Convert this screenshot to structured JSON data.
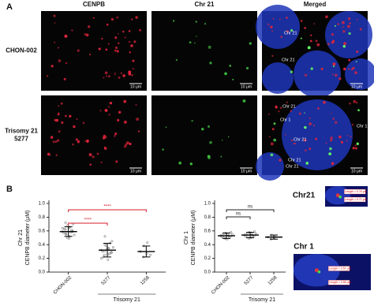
{
  "panel_a": {
    "label": "A",
    "columns": [
      "CENPB",
      "Chr 21",
      "Merged"
    ],
    "rows": [
      [
        "CHON-002"
      ],
      [
        "Trisomy 21",
        "5277"
      ]
    ],
    "scale_bar": "10 μm",
    "annotations": [
      [
        "Chr 21",
        "Chr 21"
      ],
      [
        "Chr 21",
        "Chr 1",
        "Chr 1",
        "Chr 21",
        "Chr 21",
        "Chr 21"
      ]
    ]
  },
  "panel_b": {
    "label": "B",
    "insets": [
      {
        "title": "Chr21",
        "lengths": [
          "Length = 0.76 μm",
          "Length = 0.71 μm"
        ]
      },
      {
        "title": "Chr 1",
        "lengths": [
          "Length = 0.57 μm",
          "Length = 0.55 μm"
        ]
      }
    ]
  },
  "chart_data": [
    {
      "type": "strip",
      "y_label": [
        "Chr 21",
        "CENPB diameter (μM)"
      ],
      "categories": [
        "CHON-002",
        "5277",
        "1258"
      ],
      "group_label": "Trisomy 21",
      "means": [
        0.59,
        0.32,
        0.3
      ],
      "sd": [
        0.07,
        0.1,
        0.08
      ],
      "points": [
        [
          0.59,
          0.62,
          0.55,
          0.66,
          0.52,
          0.6,
          0.7,
          0.57,
          0.63,
          0.5,
          0.68,
          0.58,
          0.61,
          0.54,
          0.64,
          0.72,
          0.56,
          0.49,
          0.65,
          0.59
        ],
        [
          0.32,
          0.25,
          0.4,
          0.18,
          0.35,
          0.28,
          0.45,
          0.3,
          0.22,
          0.38,
          0.33,
          0.27,
          0.42,
          0.36,
          0.2,
          0.31,
          0.52,
          0.26,
          0.34,
          0.29
        ],
        [
          0.3,
          0.22,
          0.38,
          0.27,
          0.43,
          0.25
        ]
      ],
      "ylim": [
        0,
        1
      ],
      "yticks": [
        {
          "value": 0,
          "label": "0.0"
        },
        0.2,
        0.4,
        0.6,
        0.8,
        {
          "value": 1,
          "label": "1.0"
        }
      ],
      "comparisons": [
        {
          "label": "****",
          "between": [
            "CHON-002",
            "5277"
          ]
        },
        {
          "label": "****",
          "between": [
            "CHON-002",
            "1258"
          ]
        }
      ],
      "color": "#000000",
      "bracket_color": "#d81b2a"
    },
    {
      "type": "strip",
      "y_label": [
        "Chr 1",
        "CENPB diameter (μM)"
      ],
      "categories": [
        "CHON-002",
        "5277",
        "1258"
      ],
      "group_label": "Trisomy 21",
      "means": [
        0.53,
        0.54,
        0.51
      ],
      "sd": [
        0.04,
        0.04,
        0.03
      ],
      "points": [
        [
          0.53,
          0.5,
          0.56,
          0.48,
          0.55,
          0.52,
          0.58,
          0.51,
          0.54,
          0.49,
          0.57,
          0.53,
          0.5,
          0.55
        ],
        [
          0.54,
          0.51,
          0.57,
          0.5,
          0.56,
          0.53,
          0.59,
          0.52,
          0.55,
          0.49,
          0.58,
          0.54,
          0.52,
          0.56
        ],
        [
          0.51,
          0.48,
          0.54,
          0.5,
          0.53
        ]
      ],
      "ylim": [
        0,
        1
      ],
      "yticks": [
        {
          "value": 0,
          "label": "0.0"
        },
        0.2,
        0.4,
        0.6,
        0.8,
        {
          "value": 1,
          "label": "1.0"
        }
      ],
      "comparisons": [
        {
          "label": "ns",
          "between": [
            "CHON-002",
            "5277"
          ]
        },
        {
          "label": "ns",
          "between": [
            "CHON-002",
            "1258"
          ]
        }
      ],
      "color": "#000000",
      "bracket_color": "#222222"
    }
  ]
}
